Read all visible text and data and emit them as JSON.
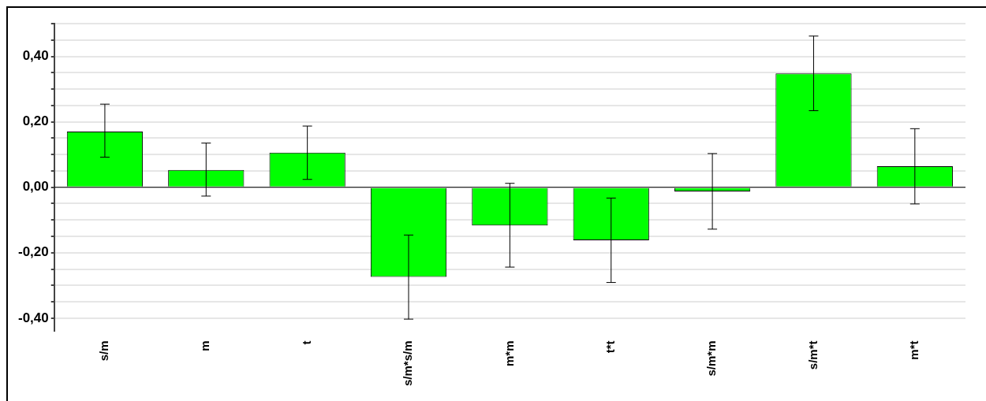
{
  "chart_data": {
    "type": "bar",
    "categories": [
      "s/m",
      "m",
      "t",
      "s/m*s/m",
      "m*m",
      "t*t",
      "s/m*m",
      "s/m*t",
      "m*t"
    ],
    "values": [
      0.17,
      0.053,
      0.106,
      -0.274,
      -0.117,
      -0.162,
      -0.013,
      0.348,
      0.064
    ],
    "errors": [
      [
        0.092,
        0.254
      ],
      [
        -0.027,
        0.135
      ],
      [
        0.024,
        0.187
      ],
      [
        -0.403,
        -0.146
      ],
      [
        -0.244,
        0.012
      ],
      [
        -0.291,
        -0.033
      ],
      [
        -0.128,
        0.103
      ],
      [
        0.234,
        0.462
      ],
      [
        -0.051,
        0.179
      ]
    ],
    "color": "#00ff00",
    "ylim": [
      -0.44,
      0.5
    ],
    "yticks": [
      {
        "value": -0.4,
        "label": "-0,40"
      },
      {
        "value": -0.35,
        "label": null
      },
      {
        "value": -0.3,
        "label": null
      },
      {
        "value": -0.25,
        "label": null
      },
      {
        "value": -0.2,
        "label": "-0,20"
      },
      {
        "value": -0.15,
        "label": null
      },
      {
        "value": -0.1,
        "label": null
      },
      {
        "value": -0.05,
        "label": null
      },
      {
        "value": 0,
        "label": "0,00"
      },
      {
        "value": 0.05,
        "label": null
      },
      {
        "value": 0.1,
        "label": null
      },
      {
        "value": 0.15,
        "label": null
      },
      {
        "value": 0.2,
        "label": "0,20"
      },
      {
        "value": 0.25,
        "label": null
      },
      {
        "value": 0.3,
        "label": null
      },
      {
        "value": 0.35,
        "label": null
      },
      {
        "value": 0.4,
        "label": "0,40"
      },
      {
        "value": 0.45,
        "label": null
      },
      {
        "value": 0.5,
        "label": null
      }
    ],
    "grid": "y",
    "legend": false
  }
}
